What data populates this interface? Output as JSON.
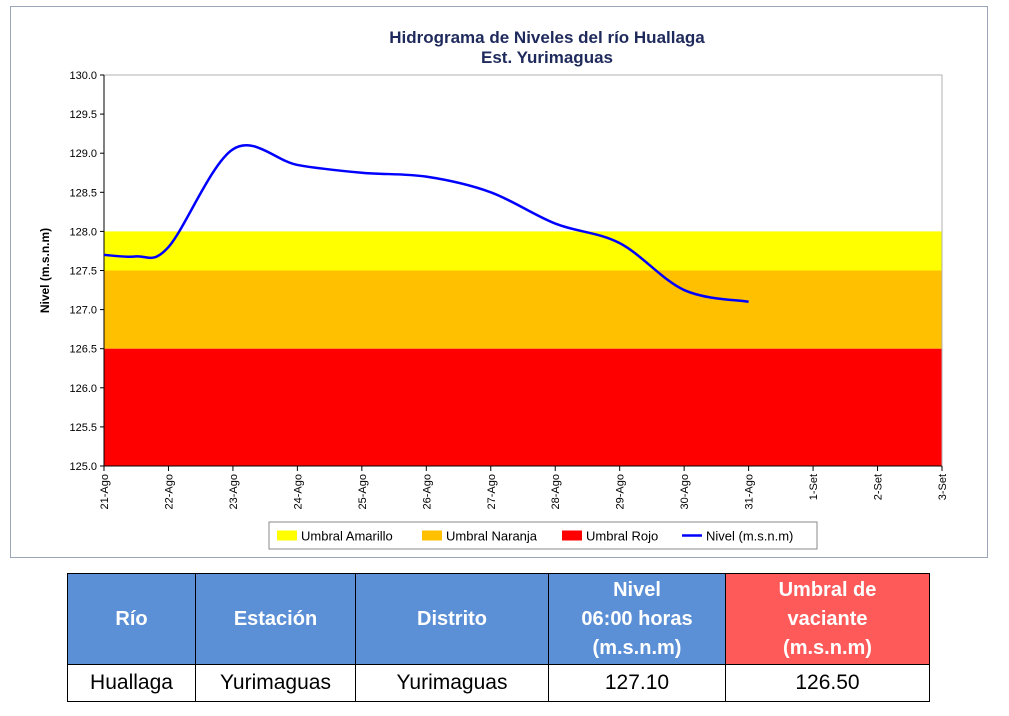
{
  "chart_data": {
    "type": "area",
    "title": "Hidrograma de Niveles del río Huallaga",
    "subtitle": "Est. Yurimaguas",
    "xlabel": "",
    "ylabel": "Nivel (m.s.n.m)",
    "ylim": [
      125.0,
      130.0
    ],
    "y_ticks": [
      "125.0",
      "125.5",
      "126.0",
      "126.5",
      "127.0",
      "127.5",
      "128.0",
      "128.5",
      "129.0",
      "129.5",
      "130.0"
    ],
    "categories": [
      "21-Ago",
      "22-Ago",
      "23-Ago",
      "24-Ago",
      "25-Ago",
      "26-Ago",
      "27-Ago",
      "28-Ago",
      "29-Ago",
      "30-Ago",
      "31-Ago",
      "1-Set",
      "2-Set",
      "3-Set"
    ],
    "grid": false,
    "legend_position": "bottom",
    "bands": [
      {
        "name": "Umbral Amarillo",
        "from": 127.5,
        "to": 128.0,
        "color": "#ffff00"
      },
      {
        "name": "Umbral Naranja",
        "from": 126.5,
        "to": 127.5,
        "color": "#ffc000"
      },
      {
        "name": "Umbral Rojo",
        "from": 125.0,
        "to": 126.5,
        "color": "#ff0000"
      }
    ],
    "series": [
      {
        "name": "Nivel (m.s.n.m)",
        "color": "#0000ff",
        "x": [
          "21-Ago",
          "21-Ago 12h",
          "22-Ago",
          "23-Ago",
          "24-Ago",
          "25-Ago",
          "26-Ago",
          "27-Ago",
          "28-Ago",
          "29-Ago",
          "30-Ago",
          "31-Ago"
        ],
        "values": [
          127.7,
          127.68,
          127.8,
          129.05,
          128.85,
          128.75,
          128.7,
          128.5,
          128.1,
          127.85,
          127.25,
          127.1
        ]
      }
    ],
    "legend": [
      {
        "label": "Umbral Amarillo",
        "color": "#ffff00",
        "kind": "box"
      },
      {
        "label": "Umbral Naranja",
        "color": "#ffc000",
        "kind": "box"
      },
      {
        "label": "Umbral Rojo",
        "color": "#ff0000",
        "kind": "box"
      },
      {
        "label": "Nivel (m.s.n.m)",
        "color": "#0000ff",
        "kind": "line"
      }
    ]
  },
  "table": {
    "headers": [
      "Río",
      "Estación",
      "Distrito",
      "Nivel\n06:00 horas\n(m.s.n.m)",
      "Umbral de\nvaciante\n(m.s.n.m)"
    ],
    "header_colors": [
      "#5b8fd6",
      "#5b8fd6",
      "#5b8fd6",
      "#5b8fd6",
      "#ff5a5a"
    ],
    "rows": [
      [
        "Huallaga",
        "Yurimaguas",
        "Yurimaguas",
        "127.10",
        "126.50"
      ]
    ]
  }
}
